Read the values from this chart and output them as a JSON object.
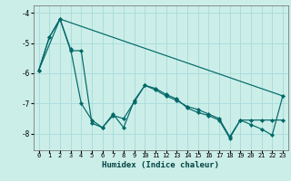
{
  "title": "",
  "xlabel": "Humidex (Indice chaleur)",
  "background_color": "#cceee8",
  "grid_color": "#aadddd",
  "line_color": "#006868",
  "xlim": [
    -0.5,
    23.5
  ],
  "ylim": [
    -8.55,
    -3.75
  ],
  "yticks": [
    -8,
    -7,
    -6,
    -5,
    -4
  ],
  "xticks": [
    0,
    1,
    2,
    3,
    4,
    5,
    6,
    7,
    8,
    9,
    10,
    11,
    12,
    13,
    14,
    15,
    16,
    17,
    18,
    19,
    20,
    21,
    22,
    23
  ],
  "series1_x": [
    0,
    1,
    2,
    3,
    4,
    5,
    6,
    7,
    8,
    9,
    10,
    11,
    12,
    13,
    14,
    15,
    16,
    17,
    18,
    19,
    20,
    21,
    22,
    23
  ],
  "series1_y": [
    -5.9,
    -4.8,
    -4.2,
    -5.2,
    -7.0,
    -7.55,
    -7.8,
    -7.35,
    -7.8,
    -6.9,
    -6.4,
    -6.55,
    -6.75,
    -6.9,
    -7.1,
    -7.2,
    -7.35,
    -7.5,
    -8.1,
    -7.55,
    -7.7,
    -7.85,
    -8.05,
    -6.75
  ],
  "series2_x": [
    0,
    1,
    2,
    3,
    4,
    5,
    6,
    7,
    8,
    9,
    10,
    11,
    12,
    13,
    14,
    15,
    16,
    17,
    18,
    19,
    20,
    21,
    22,
    23
  ],
  "series2_y": [
    -5.9,
    -4.8,
    -4.2,
    -5.25,
    -5.25,
    -7.65,
    -7.8,
    -7.4,
    -7.5,
    -6.95,
    -6.4,
    -6.5,
    -6.7,
    -6.85,
    -7.15,
    -7.3,
    -7.4,
    -7.55,
    -8.15,
    -7.55,
    -7.55,
    -7.55,
    -7.55,
    -7.55
  ],
  "trend_x": [
    0,
    2,
    23
  ],
  "trend_y": [
    -5.9,
    -4.2,
    -6.75
  ]
}
